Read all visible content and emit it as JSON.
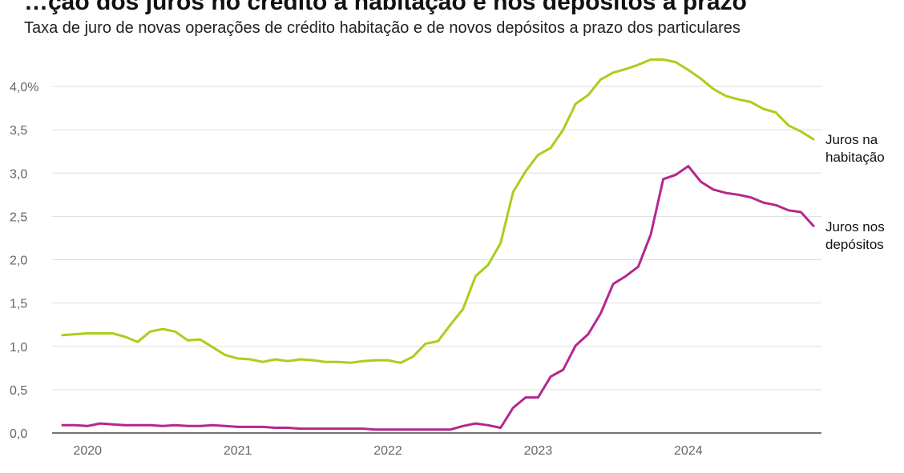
{
  "header": {
    "title": "…ção dos juros no crédito à habitação e nos depósitos a prazo",
    "subtitle": "Taxa de juro de novas operações de crédito habitação e de novos depósitos a prazo dos particulares"
  },
  "chart_data": {
    "type": "line",
    "title": "",
    "subtitle": "Taxa de juro de novas operações de crédito habitação e de novos depósitos a prazo dos particulares",
    "xlabel": "",
    "ylabel": "",
    "ylim": [
      0,
      4.3
    ],
    "y_ticks": [
      "0,0",
      "0,5",
      "1,0",
      "1,5",
      "2,0",
      "2,5",
      "3,0",
      "3,5",
      "4,0%"
    ],
    "y_tick_values": [
      0,
      0.5,
      1.0,
      1.5,
      2.0,
      2.5,
      3.0,
      3.5,
      4.0
    ],
    "x_ticks": [
      "2020",
      "2021",
      "2022",
      "2023",
      "2024"
    ],
    "grid": true,
    "legend": "end-of-line labels (right)",
    "x": [
      "2019-11",
      "2019-12",
      "2020-01",
      "2020-02",
      "2020-03",
      "2020-04",
      "2020-05",
      "2020-06",
      "2020-07",
      "2020-08",
      "2020-09",
      "2020-10",
      "2020-11",
      "2020-12",
      "2021-01",
      "2021-02",
      "2021-03",
      "2021-04",
      "2021-05",
      "2021-06",
      "2021-07",
      "2021-08",
      "2021-09",
      "2021-10",
      "2021-11",
      "2021-12",
      "2022-01",
      "2022-02",
      "2022-03",
      "2022-04",
      "2022-05",
      "2022-06",
      "2022-07",
      "2022-08",
      "2022-09",
      "2022-10",
      "2022-11",
      "2022-12",
      "2023-01",
      "2023-02",
      "2023-03",
      "2023-04",
      "2023-05",
      "2023-06",
      "2023-07",
      "2023-08",
      "2023-09",
      "2023-10",
      "2023-11",
      "2023-12",
      "2024-01",
      "2024-02",
      "2024-03",
      "2024-04",
      "2024-05",
      "2024-06",
      "2024-07",
      "2024-08",
      "2024-09",
      "2024-10",
      "2024-11"
    ],
    "series": [
      {
        "name": "Juros na habitação",
        "color": "#a8cf1a",
        "values": [
          1.13,
          1.14,
          1.15,
          1.15,
          1.15,
          1.11,
          1.05,
          1.17,
          1.2,
          1.17,
          1.07,
          1.08,
          0.99,
          0.9,
          0.86,
          0.85,
          0.82,
          0.85,
          0.83,
          0.85,
          0.84,
          0.82,
          0.82,
          0.81,
          0.83,
          0.84,
          0.84,
          0.81,
          0.88,
          1.03,
          1.06,
          1.25,
          1.43,
          1.81,
          1.94,
          2.19,
          2.78,
          3.02,
          3.21,
          3.29,
          3.5,
          3.8,
          3.9,
          4.08,
          4.16,
          4.2,
          4.25,
          4.31,
          4.31,
          4.28,
          4.19,
          4.09,
          3.97,
          3.89,
          3.85,
          3.82,
          3.74,
          3.7,
          3.55,
          3.48,
          3.39
        ]
      },
      {
        "name": "Juros nos depósitos",
        "color": "#b5278f",
        "values": [
          0.09,
          0.09,
          0.08,
          0.11,
          0.1,
          0.09,
          0.09,
          0.09,
          0.08,
          0.09,
          0.08,
          0.08,
          0.09,
          0.08,
          0.07,
          0.07,
          0.07,
          0.06,
          0.06,
          0.05,
          0.05,
          0.05,
          0.05,
          0.05,
          0.05,
          0.04,
          0.04,
          0.04,
          0.04,
          0.04,
          0.04,
          0.04,
          0.08,
          0.11,
          0.09,
          0.06,
          0.29,
          0.41,
          0.41,
          0.65,
          0.73,
          1.01,
          1.14,
          1.38,
          1.72,
          1.81,
          1.92,
          2.29,
          2.93,
          2.98,
          3.08,
          2.9,
          2.81,
          2.77,
          2.75,
          2.72,
          2.66,
          2.63,
          2.57,
          2.55,
          2.39
        ]
      }
    ],
    "end_labels": [
      [
        "Juros na",
        "habitação"
      ],
      [
        "Juros nos",
        "depósitos"
      ]
    ]
  }
}
